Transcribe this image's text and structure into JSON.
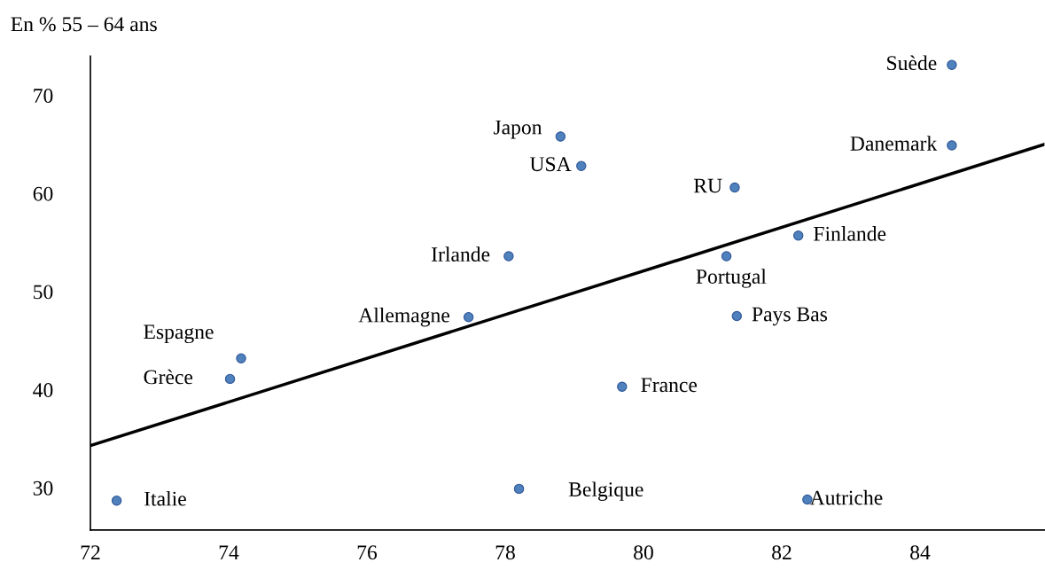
{
  "chart_data": {
    "type": "scatter",
    "ylabel": "En % 55 – 64 ans",
    "xlim": [
      72,
      85.8
    ],
    "ylim": [
      25.7,
      74
    ],
    "xticks": [
      72,
      74,
      76,
      78,
      80,
      82,
      84
    ],
    "yticks": [
      30,
      40,
      50,
      60,
      70
    ],
    "grid": false,
    "legend": false,
    "series": [
      {
        "marker": "circle",
        "color": "#4f81bd",
        "x": [
          72.38,
          74.18,
          74.02,
          77.47,
          78.05,
          78.2,
          78.8,
          79.1,
          79.69,
          81.32,
          81.2,
          81.35,
          82.24,
          82.37,
          84.46,
          84.46
        ],
        "values": [
          28.7,
          43.2,
          41.1,
          47.4,
          53.6,
          29.9,
          65.8,
          62.8,
          40.3,
          60.6,
          53.6,
          47.5,
          55.7,
          28.8,
          64.9,
          73.1
        ]
      },
      {
        "type": "line",
        "marker": "none",
        "color": "#000000",
        "x": [
          72,
          85.8
        ],
        "values": [
          34.3,
          65.0
        ]
      }
    ],
    "annotations": [
      {
        "text": "Italie",
        "x": 72.38,
        "y": 28.7
      },
      {
        "text": "Espagne",
        "x": 74.18,
        "y": 43.2
      },
      {
        "text": "Grèce",
        "x": 74.02,
        "y": 41.1
      },
      {
        "text": "Allemagne",
        "x": 77.47,
        "y": 47.4
      },
      {
        "text": "Irlande",
        "x": 78.05,
        "y": 53.6
      },
      {
        "text": "Belgique",
        "x": 78.2,
        "y": 29.9
      },
      {
        "text": "Japon",
        "x": 78.8,
        "y": 65.8
      },
      {
        "text": "USA",
        "x": 79.1,
        "y": 62.8
      },
      {
        "text": "France",
        "x": 79.69,
        "y": 40.3
      },
      {
        "text": "RU",
        "x": 81.32,
        "y": 60.6
      },
      {
        "text": "Portugal",
        "x": 81.2,
        "y": 53.6
      },
      {
        "text": "Pays Bas",
        "x": 81.35,
        "y": 47.5
      },
      {
        "text": "Finlande",
        "x": 82.24,
        "y": 55.7
      },
      {
        "text": "Autriche",
        "x": 82.37,
        "y": 28.8
      },
      {
        "text": "Danemark",
        "x": 84.46,
        "y": 64.9
      },
      {
        "text": "Suède",
        "x": 84.46,
        "y": 73.1
      }
    ]
  }
}
